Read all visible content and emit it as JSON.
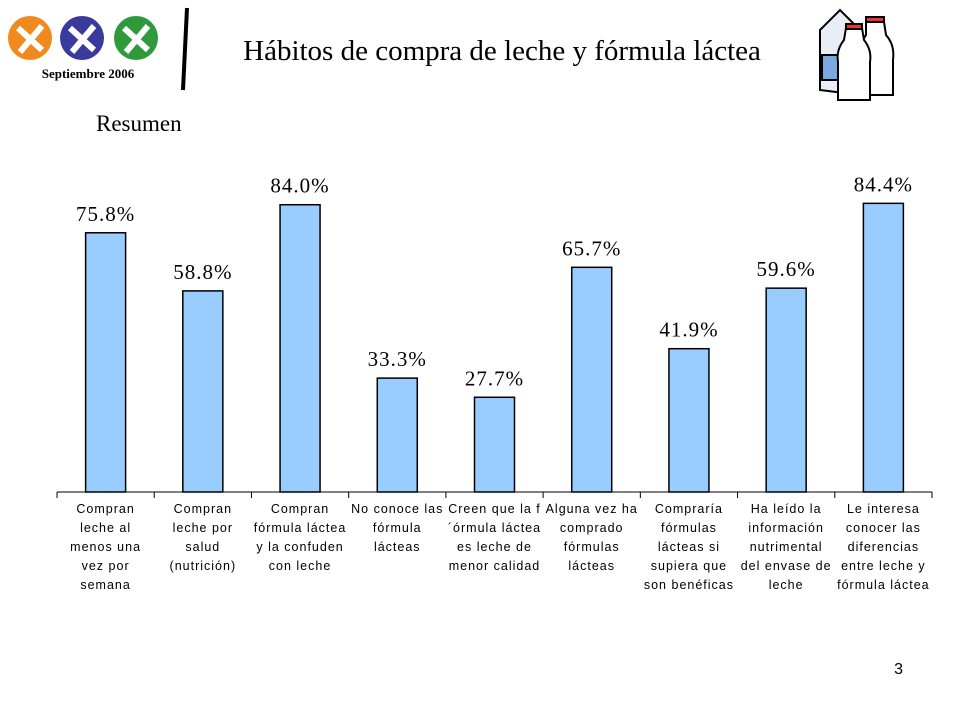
{
  "header": {
    "date": "Septiembre 2006",
    "title": "Hábitos de compra de leche y fórmula láctea",
    "page_number": "3"
  },
  "chart_data": {
    "type": "bar",
    "subtitle": "Resumen",
    "categories": [
      "Compran leche al menos una vez por semana",
      "Compran leche por salud (nutrición)",
      "Compran fórmula láctea y la confuden con leche",
      "No conoce las fórmula lácteas",
      "Creen que la f´órmula láctea es leche de menor calidad",
      "Alguna vez ha comprado fórmulas lácteas",
      "Compraría fórmulas lácteas si supiera que son benéficas",
      "Ha leído la información nutrimental del envase de leche",
      "Le interesa conocer las diferencias entre leche y fórmula láctea"
    ],
    "values": [
      75.8,
      58.8,
      84.0,
      33.3,
      27.7,
      65.7,
      41.9,
      59.6,
      84.4
    ],
    "value_labels": [
      "75.8%",
      "58.8%",
      "84.0%",
      "33.3%",
      "27.7%",
      "65.7%",
      "41.9%",
      "59.6%",
      "84.4%"
    ],
    "color": "#99ccff",
    "ylim": [
      0,
      100
    ]
  }
}
